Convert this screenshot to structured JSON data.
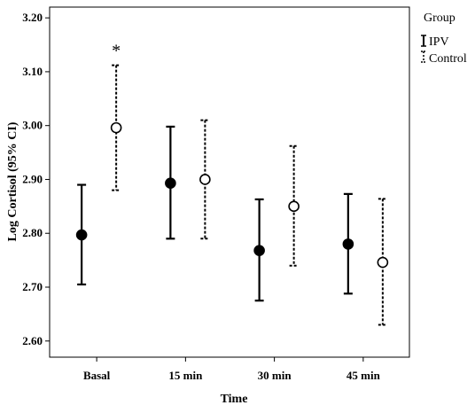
{
  "chart_data": {
    "type": "scatter",
    "subtype": "error-bar",
    "title": "",
    "xlabel": "Time",
    "ylabel": "Log Cortisol (95% CI)",
    "categories": [
      "Basal",
      "15 min",
      "30 min",
      "45 min"
    ],
    "ylim": [
      2.57,
      3.22
    ],
    "yticks": [
      "2.60",
      "2.70",
      "2.80",
      "2.90",
      "3.00",
      "3.10",
      "3.20"
    ],
    "legend": {
      "title": "Group",
      "position": "top-right, outside plot",
      "entries": [
        {
          "label": "IPV",
          "line_style": "solid",
          "marker": "filled circle",
          "color": "#000000"
        },
        {
          "label": "Control",
          "line_style": "dashed",
          "marker": "open circle",
          "color": "#000000"
        }
      ]
    },
    "series": [
      {
        "name": "IPV",
        "values": [
          2.797,
          2.893,
          2.768,
          2.78
        ],
        "ci_lower": [
          2.705,
          2.79,
          2.675,
          2.688
        ],
        "ci_upper": [
          2.89,
          2.998,
          2.863,
          2.873
        ]
      },
      {
        "name": "Control",
        "values": [
          2.996,
          2.9,
          2.85,
          2.746
        ],
        "ci_lower": [
          2.88,
          2.79,
          2.74,
          2.63
        ],
        "ci_upper": [
          3.112,
          3.01,
          2.962,
          2.864
        ]
      }
    ],
    "annotations": [
      {
        "text": "*",
        "category": "Basal",
        "series": "Control"
      }
    ],
    "grid": false
  }
}
